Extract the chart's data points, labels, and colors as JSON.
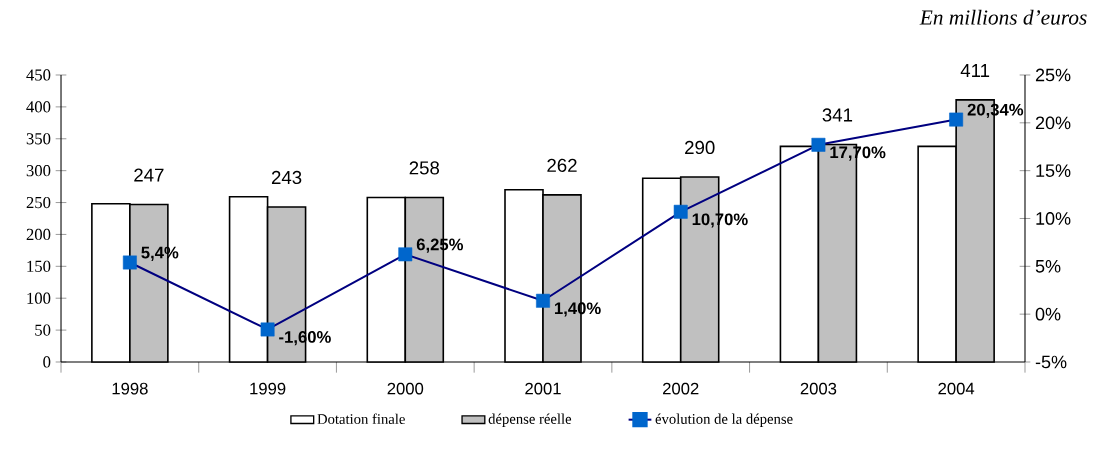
{
  "chart_data": {
    "type": "bar",
    "annotations": [
      "En millions d’euros"
    ],
    "categories": [
      "1998",
      "1999",
      "2000",
      "2001",
      "2002",
      "2003",
      "2004"
    ],
    "series": [
      {
        "name": "Dotation finale",
        "color": "#ffffff",
        "values": [
          248,
          259,
          258,
          270,
          288,
          338,
          338
        ]
      },
      {
        "name": "dépense réelle",
        "color": "#c0c0c0",
        "values": [
          247,
          243,
          258,
          262,
          290,
          341,
          411
        ],
        "value_labels": [
          "247",
          "243",
          "258",
          "262",
          "290",
          "341",
          "411"
        ]
      },
      {
        "name": "évolution de la dépense",
        "type": "line",
        "axis": "y2",
        "color": "#000080",
        "colors": [
          "#0066cc",
          "#0066cc",
          "#0066cc",
          "#0066cc",
          "#0066cc",
          "#0066cc",
          "#0066cc"
        ],
        "values": [
          5.4,
          -1.6,
          6.25,
          1.4,
          10.7,
          17.7,
          20.34
        ],
        "value_labels": [
          "5,4%",
          "-1,60%",
          "6,25%",
          "1,40%",
          "10,70%",
          "17,70%",
          "20,34%"
        ]
      }
    ],
    "marker": "square",
    "legend": "bottom",
    "grid": false,
    "ylim": [
      0,
      450
    ],
    "yticks": [
      0,
      50,
      100,
      150,
      200,
      250,
      300,
      350,
      400,
      450
    ],
    "y2lim": [
      -5,
      25
    ],
    "y2ticks": [
      {
        "value": -5,
        "label": "-5%"
      },
      {
        "value": 0,
        "label": "0%"
      },
      {
        "value": 5,
        "label": "5%"
      },
      {
        "value": 10,
        "label": "10%"
      },
      {
        "value": 15,
        "label": "15%"
      },
      {
        "value": 20,
        "label": "20%"
      },
      {
        "value": 25,
        "label": "25%"
      }
    ]
  }
}
